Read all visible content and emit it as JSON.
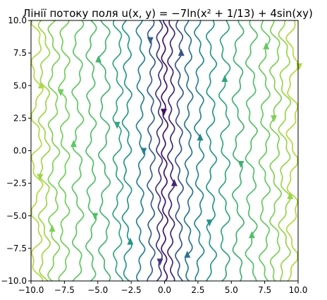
{
  "chart_data": {
    "type": "streamplot",
    "title": "Лінії потоку поля u(x, y) = −7ln(x² + 1/13) + 4sin(xy)",
    "xlabel": "",
    "ylabel": "",
    "xlim": [
      -10,
      10
    ],
    "ylim": [
      -10,
      10
    ],
    "x_ticks": [
      -10,
      -7.5,
      -5,
      -2.5,
      0,
      2.5,
      5,
      7.5,
      10
    ],
    "y_ticks": [
      -10,
      -7.5,
      -5,
      -2.5,
      0,
      2.5,
      5,
      7.5,
      10
    ],
    "x_tick_labels": [
      "−10.0",
      "−7.5",
      "−5.0",
      "−2.5",
      "0.0",
      "2.5",
      "5.0",
      "7.5",
      "10.0"
    ],
    "y_tick_labels": [
      "−10.0",
      "−7.5",
      "−5.0",
      "−2.5",
      "0.0",
      "2.5",
      "5.0",
      "7.5",
      "10.0"
    ],
    "grid": false,
    "colormap": "viridis",
    "color_stops": [
      "#440154",
      "#3b528b",
      "#21918c",
      "#5ec962",
      "#fde725"
    ],
    "streamlines": [
      {
        "x0": -9.6,
        "amp": 0.35,
        "color": 0.88,
        "arrow_dir": "up",
        "arrow_y": 5.0
      },
      {
        "x0": -9.0,
        "amp": 0.3,
        "color": 0.85,
        "arrow_dir": "down",
        "arrow_y": -2.0
      },
      {
        "x0": -8.3,
        "amp": 0.3,
        "color": 0.8,
        "arrow_dir": "up",
        "arrow_y": -6.0
      },
      {
        "x0": -7.5,
        "amp": 0.28,
        "color": 0.78,
        "arrow_dir": "down",
        "arrow_y": 4.5
      },
      {
        "x0": -6.5,
        "amp": 0.3,
        "color": 0.74,
        "arrow_dir": "up",
        "arrow_y": 0.5
      },
      {
        "x0": -5.5,
        "amp": 0.25,
        "color": 0.7,
        "arrow_dir": "down",
        "arrow_y": -5.0
      },
      {
        "x0": -4.5,
        "amp": 0.3,
        "color": 0.65,
        "arrow_dir": "up",
        "arrow_y": 7.0
      },
      {
        "x0": -3.5,
        "amp": 0.25,
        "color": 0.58,
        "arrow_dir": "down",
        "arrow_y": 2.0
      },
      {
        "x0": -2.8,
        "amp": 0.22,
        "color": 0.52,
        "arrow_dir": "up",
        "arrow_y": -7.0
      },
      {
        "x0": -1.8,
        "amp": 0.18,
        "color": 0.44,
        "arrow_dir": "down",
        "arrow_y": 0.0
      },
      {
        "x0": -1.0,
        "amp": 0.15,
        "color": 0.3,
        "arrow_dir": "down",
        "arrow_y": 8.5
      },
      {
        "x0": -0.4,
        "amp": 0.12,
        "color": 0.18,
        "arrow_dir": "down",
        "arrow_y": -8.5
      },
      {
        "x0": 0.0,
        "amp": 0.1,
        "color": 0.05,
        "arrow_dir": "down",
        "arrow_y": 3.0
      },
      {
        "x0": 0.5,
        "amp": 0.12,
        "color": 0.12,
        "arrow_dir": "up",
        "arrow_y": -2.5
      },
      {
        "x0": 1.1,
        "amp": 0.16,
        "color": 0.25,
        "arrow_dir": "up",
        "arrow_y": 7.5
      },
      {
        "x0": 1.8,
        "amp": 0.18,
        "color": 0.38,
        "arrow_dir": "up",
        "arrow_y": -8.0
      },
      {
        "x0": 2.6,
        "amp": 0.22,
        "color": 0.46,
        "arrow_dir": "up",
        "arrow_y": 1.0
      },
      {
        "x0": 3.5,
        "amp": 0.25,
        "color": 0.52,
        "arrow_dir": "down",
        "arrow_y": -5.5
      },
      {
        "x0": 4.5,
        "amp": 0.28,
        "color": 0.58,
        "arrow_dir": "up",
        "arrow_y": 5.5
      },
      {
        "x0": 5.5,
        "amp": 0.3,
        "color": 0.64,
        "arrow_dir": "down",
        "arrow_y": -1.0
      },
      {
        "x0": 6.5,
        "amp": 0.3,
        "color": 0.7,
        "arrow_dir": "up",
        "arrow_y": -6.5
      },
      {
        "x0": 7.5,
        "amp": 0.28,
        "color": 0.76,
        "arrow_dir": "up",
        "arrow_y": 8.0
      },
      {
        "x0": 8.3,
        "amp": 0.3,
        "color": 0.8,
        "arrow_dir": "down",
        "arrow_y": 2.5
      },
      {
        "x0": 9.0,
        "amp": 0.32,
        "color": 0.84,
        "arrow_dir": "up",
        "arrow_y": -3.5
      },
      {
        "x0": 9.6,
        "amp": 0.35,
        "color": 0.88,
        "arrow_dir": "down",
        "arrow_y": 6.5
      }
    ]
  }
}
